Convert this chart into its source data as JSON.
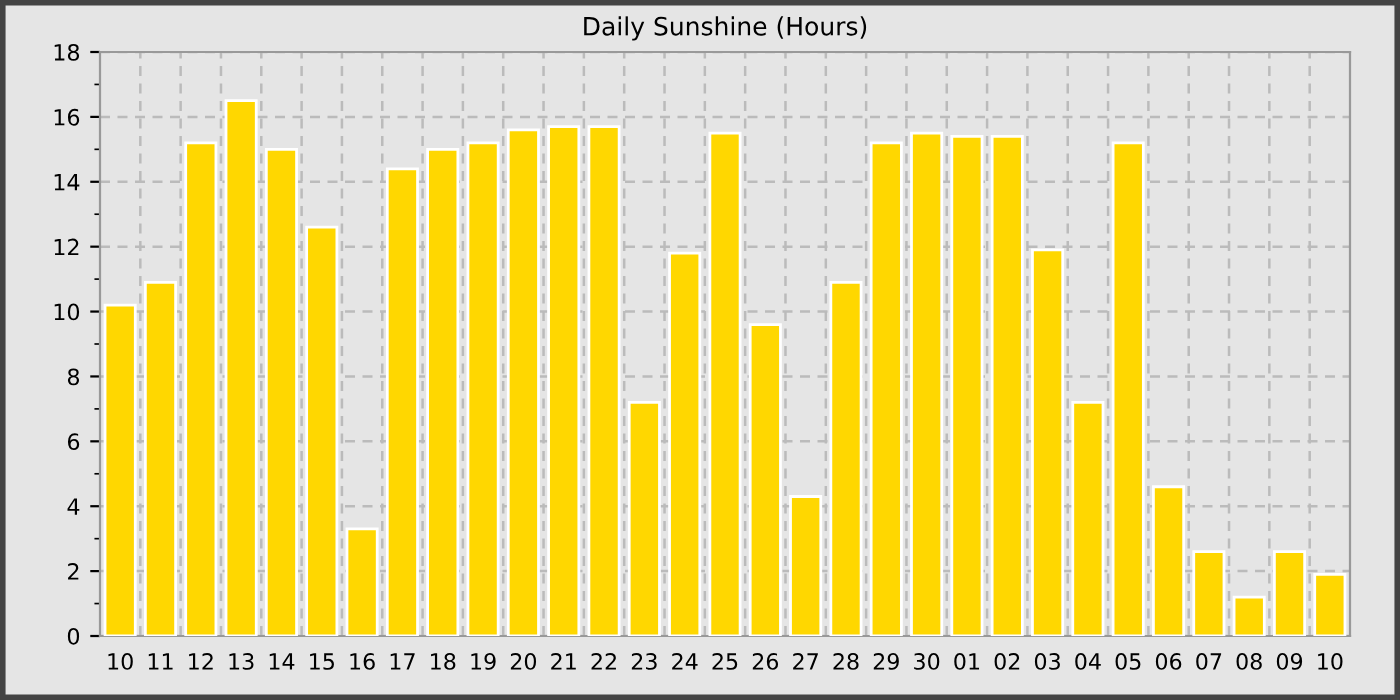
{
  "chart_data": {
    "type": "bar",
    "title": "Daily Sunshine (Hours)",
    "categories": [
      "10",
      "11",
      "12",
      "13",
      "14",
      "15",
      "16",
      "17",
      "18",
      "19",
      "20",
      "21",
      "22",
      "23",
      "24",
      "25",
      "26",
      "27",
      "28",
      "29",
      "30",
      "01",
      "02",
      "03",
      "04",
      "05",
      "06",
      "07",
      "08",
      "09",
      "10"
    ],
    "values": [
      10.2,
      10.9,
      15.2,
      16.5,
      15.0,
      12.6,
      3.3,
      14.4,
      15.0,
      15.2,
      15.6,
      15.7,
      15.7,
      7.2,
      11.8,
      15.5,
      9.6,
      4.3,
      10.9,
      15.2,
      15.5,
      15.4,
      15.4,
      11.9,
      7.2,
      15.2,
      4.6,
      2.6,
      1.2,
      2.6,
      1.9
    ],
    "color": "#ffd700",
    "ylim": [
      0,
      18
    ],
    "yticks": [
      0,
      2,
      4,
      6,
      8,
      10,
      12,
      14,
      16,
      18
    ],
    "grid": true
  }
}
